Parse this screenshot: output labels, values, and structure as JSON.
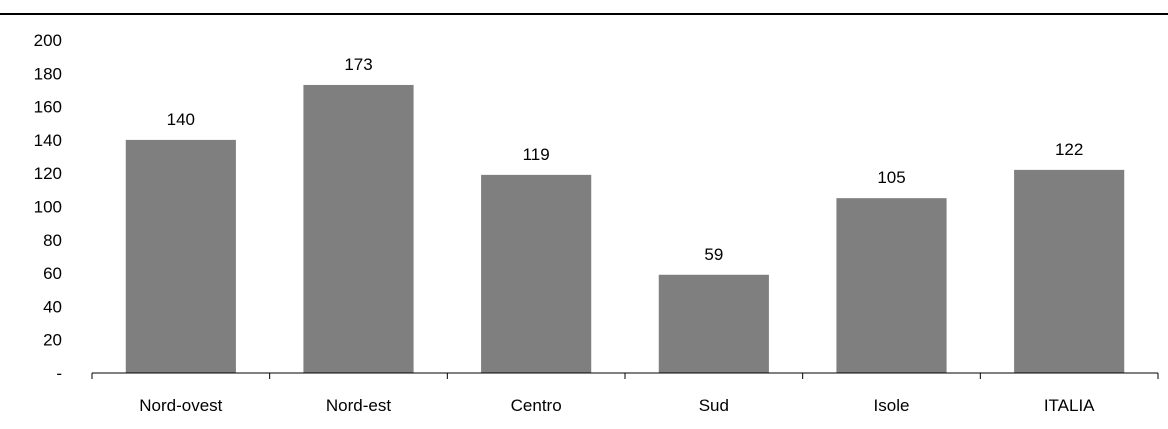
{
  "chart_data": {
    "type": "bar",
    "title": "",
    "xlabel": "",
    "ylabel": "",
    "categories": [
      "Nord-ovest",
      "Nord-est",
      "Centro",
      "Sud",
      "Isole",
      "ITALIA"
    ],
    "values": [
      140,
      173,
      119,
      59,
      105,
      122
    ],
    "value_labels": [
      "140",
      "173",
      "119",
      "59",
      "105",
      "122"
    ],
    "ylim": [
      0,
      200
    ],
    "yticks": [
      0,
      20,
      40,
      60,
      80,
      100,
      120,
      140,
      160,
      180,
      200
    ],
    "ytick_labels": [
      "-",
      "20",
      "40",
      "60",
      "80",
      "100",
      "120",
      "140",
      "160",
      "180",
      "200"
    ],
    "grid": false,
    "legend": "none",
    "bar_color": "#7f7f7f",
    "axis_color": "#000000"
  }
}
